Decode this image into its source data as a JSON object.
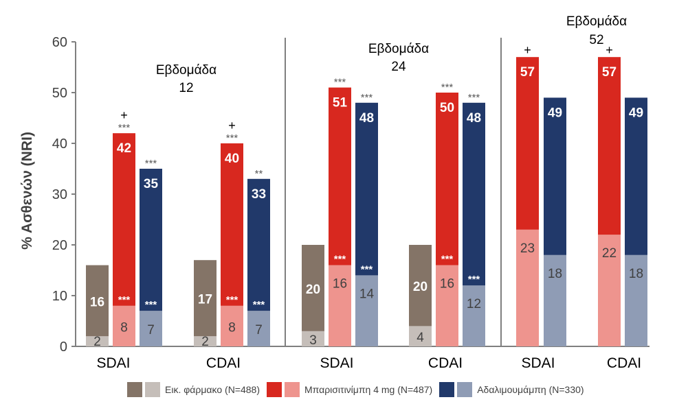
{
  "chart_data": {
    "type": "bar",
    "ylabel": "% Ασθενών (NRI)",
    "ylim": [
      0,
      60
    ],
    "yticks": [
      0,
      10,
      20,
      30,
      40,
      50,
      60
    ],
    "grid": false,
    "legend_position": "bottom",
    "colors": {
      "placebo_top": "#847467",
      "placebo_bottom": "#C5BEB9",
      "bari_top": "#D8281F",
      "bari_bottom": "#EE948E",
      "ada_top": "#21396A",
      "ada_bottom": "#8F9CB5",
      "axis": "#7F7F7F",
      "text": "#404040",
      "sig": "#595959"
    },
    "panels": [
      {
        "title_line1": "Εβδομάδα",
        "title_line2": "12",
        "groups": [
          {
            "label": "SDAI",
            "bars": [
              {
                "series": "placebo",
                "total": 16,
                "low": 2,
                "total_label": "16",
                "low_label": "2"
              },
              {
                "series": "bari",
                "total": 42,
                "low": 8,
                "total_label": "42",
                "low_label": "8",
                "top_sig": "***",
                "plus": "+",
                "low_sig": "***"
              },
              {
                "series": "ada",
                "total": 35,
                "low": 7,
                "total_label": "35",
                "low_label": "7",
                "top_sig": "***",
                "low_sig": "***"
              }
            ]
          },
          {
            "label": "CDAI",
            "bars": [
              {
                "series": "placebo",
                "total": 17,
                "low": 2,
                "total_label": "17",
                "low_label": "2"
              },
              {
                "series": "bari",
                "total": 40,
                "low": 8,
                "total_label": "40",
                "low_label": "8",
                "top_sig": "***",
                "plus": "+",
                "low_sig": "***"
              },
              {
                "series": "ada",
                "total": 33,
                "low": 7,
                "total_label": "33",
                "low_label": "7",
                "top_sig": "**",
                "low_sig": "***"
              }
            ]
          }
        ]
      },
      {
        "title_line1": "Εβδομάδα",
        "title_line2": "24",
        "groups": [
          {
            "label": "SDAI",
            "bars": [
              {
                "series": "placebo",
                "total": 20,
                "low": 3,
                "total_label": "20",
                "low_label": "3"
              },
              {
                "series": "bari",
                "total": 51,
                "low": 16,
                "total_label": "51",
                "low_label": "16",
                "top_sig": "***",
                "low_sig": "***"
              },
              {
                "series": "ada",
                "total": 48,
                "low": 14,
                "total_label": "48",
                "low_label": "14",
                "top_sig": "***",
                "low_sig": "***"
              }
            ]
          },
          {
            "label": "CDAI",
            "bars": [
              {
                "series": "placebo",
                "total": 20,
                "low": 4,
                "total_label": "20",
                "low_label": "4"
              },
              {
                "series": "bari",
                "total": 50,
                "low": 16,
                "total_label": "50",
                "low_label": "16",
                "top_sig": "***",
                "low_sig": "***"
              },
              {
                "series": "ada",
                "total": 48,
                "low": 12,
                "total_label": "48",
                "low_label": "12",
                "top_sig": "***",
                "low_sig": "***"
              }
            ]
          }
        ]
      },
      {
        "title_line1": "Εβδομάδα",
        "title_line2": "52",
        "groups": [
          {
            "label": "SDAI",
            "bars": [
              {
                "series": "bari",
                "total": 57,
                "low": 23,
                "total_label": "57",
                "low_label": "23",
                "plus": "+"
              },
              {
                "series": "ada",
                "total": 49,
                "low": 18,
                "total_label": "49",
                "low_label": "18"
              }
            ]
          },
          {
            "label": "CDAI",
            "bars": [
              {
                "series": "bari",
                "total": 57,
                "low": 22,
                "total_label": "57",
                "low_label": "22",
                "plus": "+"
              },
              {
                "series": "ada",
                "total": 49,
                "low": 18,
                "total_label": "49",
                "low_label": "18"
              }
            ]
          }
        ]
      }
    ],
    "legend": [
      {
        "series": "placebo",
        "label": "Εικ. φάρμακο (N=488)"
      },
      {
        "series": "bari",
        "label": "Μπαρισιτινίμπη 4 mg (N=487)"
      },
      {
        "series": "ada",
        "label": "Αδαλιμουμάμπη (N=330)"
      }
    ]
  }
}
